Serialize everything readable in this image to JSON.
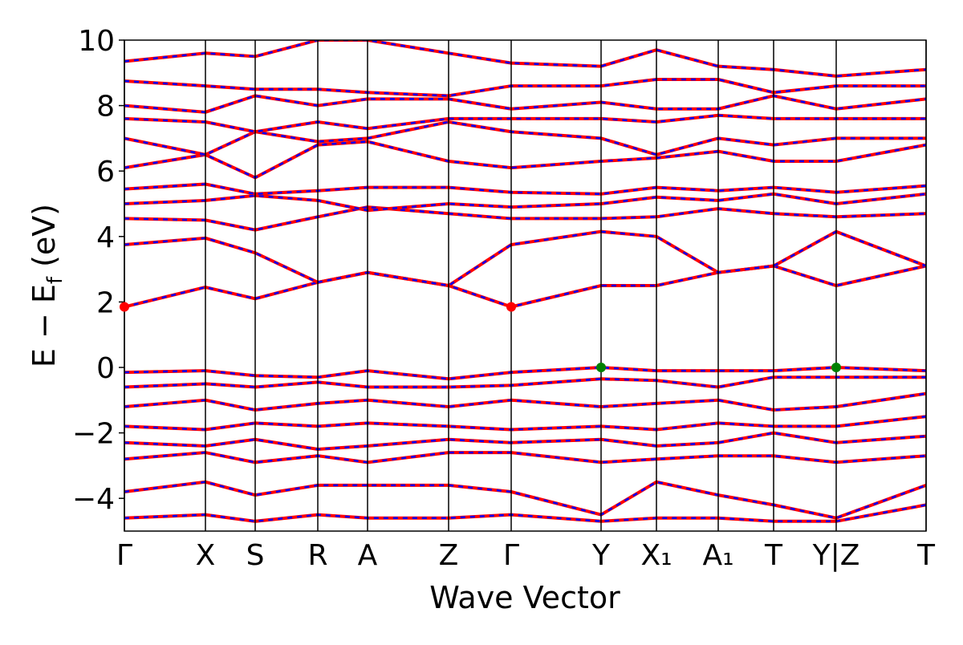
{
  "chart_data": {
    "type": "line",
    "xlabel": "Wave Vector",
    "ylabel": {
      "main": "E − E",
      "sub": "f",
      "unit": "(eV)"
    },
    "x": [
      0,
      1.01,
      1.63,
      2.41,
      3.03,
      4.04,
      4.82,
      5.94,
      6.63,
      7.4,
      8.09,
      8.87,
      9.99
    ],
    "xlim": [
      0,
      9.99
    ],
    "xticks": [
      {
        "value": 0,
        "label": "Γ"
      },
      {
        "value": 1.01,
        "label": "X"
      },
      {
        "value": 1.63,
        "label": "S"
      },
      {
        "value": 2.41,
        "label": "R"
      },
      {
        "value": 3.03,
        "label": "A"
      },
      {
        "value": 4.04,
        "label": "Z"
      },
      {
        "value": 4.82,
        "label": "Γ"
      },
      {
        "value": 5.94,
        "label": "Y"
      },
      {
        "value": 6.63,
        "label": "X₁"
      },
      {
        "value": 7.4,
        "label": "A₁"
      },
      {
        "value": 8.09,
        "label": "T"
      },
      {
        "value": 8.87,
        "label": "Y|Z"
      },
      {
        "value": 9.99,
        "label": "T"
      }
    ],
    "ylim": [
      -5,
      10
    ],
    "yticks": [
      {
        "value": -4,
        "label": "−4"
      },
      {
        "value": -2,
        "label": "−2"
      },
      0,
      2,
      4,
      6,
      8,
      10
    ],
    "overlay_color": "#0000ff",
    "series": [
      {
        "color": "#ff0000",
        "values": [
          1.85,
          2.45,
          2.1,
          2.6,
          2.9,
          2.5,
          1.85,
          2.5,
          2.5,
          2.9,
          3.1,
          2.5,
          3.1
        ]
      },
      {
        "color": "#ff0000",
        "values": [
          3.75,
          3.95,
          3.5,
          2.6,
          2.9,
          2.5,
          3.75,
          4.15,
          4.0,
          2.9,
          3.1,
          4.15,
          3.1
        ]
      },
      {
        "color": "#ff0000",
        "values": [
          4.55,
          4.5,
          4.2,
          4.6,
          4.9,
          4.7,
          4.55,
          4.55,
          4.6,
          4.85,
          4.7,
          4.6,
          4.7
        ]
      },
      {
        "color": "#ff0000",
        "values": [
          5.0,
          5.1,
          5.25,
          5.1,
          4.8,
          5.0,
          4.9,
          5.0,
          5.2,
          5.1,
          5.3,
          5.0,
          5.3
        ]
      },
      {
        "color": "#ff0000",
        "values": [
          5.45,
          5.6,
          5.3,
          5.4,
          5.5,
          5.5,
          5.35,
          5.3,
          5.5,
          5.4,
          5.5,
          5.35,
          5.55
        ]
      },
      {
        "color": "#ff0000",
        "values": [
          6.1,
          6.5,
          5.8,
          6.8,
          6.9,
          6.3,
          6.1,
          6.3,
          6.4,
          6.6,
          6.3,
          6.3,
          6.8
        ]
      },
      {
        "color": "#ff0000",
        "values": [
          7.0,
          6.5,
          7.2,
          6.9,
          7.0,
          7.5,
          7.2,
          7.0,
          6.5,
          7.0,
          6.8,
          7.0,
          7.0
        ]
      },
      {
        "color": "#ff0000",
        "values": [
          7.6,
          7.5,
          7.2,
          7.5,
          7.3,
          7.6,
          7.6,
          7.6,
          7.5,
          7.7,
          7.6,
          7.6,
          7.6
        ]
      },
      {
        "color": "#ff0000",
        "values": [
          8.0,
          7.8,
          8.3,
          8.0,
          8.2,
          8.2,
          7.9,
          8.1,
          7.9,
          7.9,
          8.3,
          7.9,
          8.2
        ]
      },
      {
        "color": "#ff0000",
        "values": [
          8.75,
          8.6,
          8.5,
          8.5,
          8.4,
          8.3,
          8.6,
          8.6,
          8.8,
          8.8,
          8.4,
          8.6,
          8.6
        ]
      },
      {
        "color": "#ff0000",
        "values": [
          9.35,
          9.6,
          9.5,
          10.0,
          10.0,
          9.6,
          9.3,
          9.2,
          9.7,
          9.2,
          9.1,
          8.9,
          9.1
        ]
      },
      {
        "color": "#ff0000",
        "values": [
          -0.15,
          -0.1,
          -0.25,
          -0.3,
          -0.1,
          -0.35,
          -0.15,
          0.0,
          -0.1,
          -0.1,
          -0.1,
          0.0,
          -0.1
        ]
      },
      {
        "color": "#ff0000",
        "values": [
          -0.6,
          -0.5,
          -0.6,
          -0.45,
          -0.6,
          -0.6,
          -0.55,
          -0.35,
          -0.4,
          -0.6,
          -0.3,
          -0.3,
          -0.3
        ]
      },
      {
        "color": "#ff0000",
        "values": [
          -1.2,
          -1.0,
          -1.3,
          -1.1,
          -1.0,
          -1.2,
          -1.0,
          -1.2,
          -1.1,
          -1.0,
          -1.3,
          -1.2,
          -0.8
        ]
      },
      {
        "color": "#ff0000",
        "values": [
          -1.8,
          -1.9,
          -1.7,
          -1.8,
          -1.7,
          -1.8,
          -1.9,
          -1.8,
          -1.9,
          -1.7,
          -1.8,
          -1.8,
          -1.5
        ]
      },
      {
        "color": "#ff0000",
        "values": [
          -2.3,
          -2.4,
          -2.2,
          -2.5,
          -2.4,
          -2.2,
          -2.3,
          -2.2,
          -2.4,
          -2.3,
          -2.0,
          -2.3,
          -2.1
        ]
      },
      {
        "color": "#ff0000",
        "values": [
          -2.8,
          -2.6,
          -2.9,
          -2.7,
          -2.9,
          -2.6,
          -2.6,
          -2.9,
          -2.8,
          -2.7,
          -2.7,
          -2.9,
          -2.7
        ]
      },
      {
        "color": "#ff0000",
        "values": [
          -3.8,
          -3.5,
          -3.9,
          -3.6,
          -3.6,
          -3.6,
          -3.8,
          -4.5,
          -3.5,
          -3.9,
          -4.2,
          -4.6,
          -3.6
        ]
      },
      {
        "color": "#ff0000",
        "values": [
          -4.6,
          -4.5,
          -4.7,
          -4.5,
          -4.6,
          -4.6,
          -4.5,
          -4.7,
          -4.6,
          -4.6,
          -4.7,
          -4.7,
          -4.2
        ]
      }
    ],
    "markers": [
      {
        "x": 0,
        "y": 1.85,
        "color": "#ff0000"
      },
      {
        "x": 4.82,
        "y": 1.85,
        "color": "#ff0000"
      },
      {
        "x": 5.94,
        "y": 0,
        "color": "#008000"
      },
      {
        "x": 8.87,
        "y": 0,
        "color": "#008000"
      }
    ]
  }
}
